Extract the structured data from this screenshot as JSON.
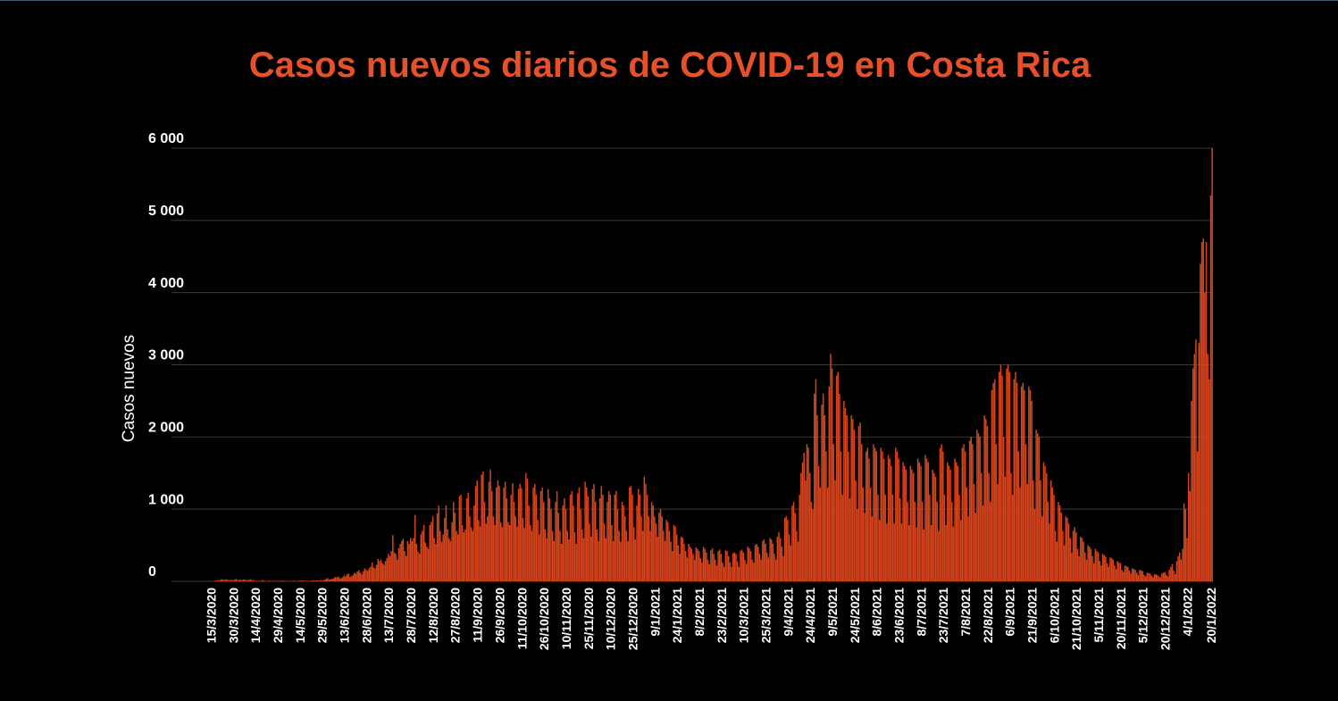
{
  "chart_data": {
    "type": "bar",
    "title": "Casos nuevos diarios de COVID-19 en Costa Rica",
    "y_label": "Casos nuevos",
    "color": "#d9441c",
    "grid": true,
    "ylim": [
      0,
      6000
    ],
    "yticks": [
      0,
      {
        "value": 1000,
        "label": "1 000"
      },
      {
        "value": 2000,
        "label": "2 000"
      },
      {
        "value": 3000,
        "label": "3 000"
      },
      {
        "value": 4000,
        "label": "4 000"
      },
      {
        "value": 5000,
        "label": "5 000"
      },
      {
        "value": 6000,
        "label": "6 000"
      }
    ],
    "categories": [
      "15/3/2020",
      null,
      null,
      null,
      null,
      null,
      null,
      null,
      null,
      null,
      null,
      null,
      null,
      null,
      null,
      "30/3/2020",
      null,
      null,
      null,
      null,
      null,
      null,
      null,
      null,
      null,
      null,
      null,
      null,
      null,
      null,
      "14/4/2020",
      null,
      null,
      null,
      null,
      null,
      null,
      null,
      null,
      null,
      null,
      null,
      null,
      null,
      null,
      "29/4/2020",
      null,
      null,
      null,
      null,
      null,
      null,
      null,
      null,
      null,
      null,
      null,
      null,
      null,
      null,
      "14/5/2020",
      null,
      null,
      null,
      null,
      null,
      null,
      null,
      null,
      null,
      null,
      null,
      null,
      null,
      null,
      "29/5/2020",
      null,
      null,
      null,
      null,
      null,
      null,
      null,
      null,
      null,
      null,
      null,
      null,
      null,
      null,
      "13/6/2020",
      null,
      null,
      null,
      null,
      null,
      null,
      null,
      null,
      null,
      null,
      null,
      null,
      null,
      null,
      "28/6/2020",
      null,
      null,
      null,
      null,
      null,
      null,
      null,
      null,
      null,
      null,
      null,
      null,
      null,
      null,
      "13/7/2020",
      null,
      null,
      null,
      null,
      null,
      null,
      null,
      null,
      null,
      null,
      null,
      null,
      null,
      null,
      "28/7/2020",
      null,
      null,
      null,
      null,
      null,
      null,
      null,
      null,
      null,
      null,
      null,
      null,
      null,
      null,
      "12/8/2020",
      null,
      null,
      null,
      null,
      null,
      null,
      null,
      null,
      null,
      null,
      null,
      null,
      null,
      null,
      "27/8/2020",
      null,
      null,
      null,
      null,
      null,
      null,
      null,
      null,
      null,
      null,
      null,
      null,
      null,
      null,
      "11/9/2020",
      null,
      null,
      null,
      null,
      null,
      null,
      null,
      null,
      null,
      null,
      null,
      null,
      null,
      null,
      "26/9/2020",
      null,
      null,
      null,
      null,
      null,
      null,
      null,
      null,
      null,
      null,
      null,
      null,
      null,
      null,
      "11/10/2020",
      null,
      null,
      null,
      null,
      null,
      null,
      null,
      null,
      null,
      null,
      null,
      null,
      null,
      null,
      "26/10/2020",
      null,
      null,
      null,
      null,
      null,
      null,
      null,
      null,
      null,
      null,
      null,
      null,
      null,
      null,
      "10/11/2020",
      null,
      null,
      null,
      null,
      null,
      null,
      null,
      null,
      null,
      null,
      null,
      null,
      null,
      null,
      "25/11/2020",
      null,
      null,
      null,
      null,
      null,
      null,
      null,
      null,
      null,
      null,
      null,
      null,
      null,
      null,
      "10/12/2020",
      null,
      null,
      null,
      null,
      null,
      null,
      null,
      null,
      null,
      null,
      null,
      null,
      null,
      null,
      "25/12/2020",
      null,
      null,
      null,
      null,
      null,
      null,
      null,
      null,
      null,
      null,
      null,
      null,
      null,
      null,
      "9/1/2021",
      null,
      null,
      null,
      null,
      null,
      null,
      null,
      null,
      null,
      null,
      null,
      null,
      null,
      null,
      "24/1/2021",
      null,
      null,
      null,
      null,
      null,
      null,
      null,
      null,
      null,
      null,
      null,
      null,
      null,
      null,
      "8/2/2021",
      null,
      null,
      null,
      null,
      null,
      null,
      null,
      null,
      null,
      null,
      null,
      null,
      null,
      null,
      "23/2/2021",
      null,
      null,
      null,
      null,
      null,
      null,
      null,
      null,
      null,
      null,
      null,
      null,
      null,
      null,
      "10/3/2021",
      null,
      null,
      null,
      null,
      null,
      null,
      null,
      null,
      null,
      null,
      null,
      null,
      null,
      null,
      "25/3/2021",
      null,
      null,
      null,
      null,
      null,
      null,
      null,
      null,
      null,
      null,
      null,
      null,
      null,
      null,
      "9/4/2021",
      null,
      null,
      null,
      null,
      null,
      null,
      null,
      null,
      null,
      null,
      null,
      null,
      null,
      null,
      "24/4/2021",
      null,
      null,
      null,
      null,
      null,
      null,
      null,
      null,
      null,
      null,
      null,
      null,
      null,
      null,
      "9/5/2021",
      null,
      null,
      null,
      null,
      null,
      null,
      null,
      null,
      null,
      null,
      null,
      null,
      null,
      null,
      "24/5/2021",
      null,
      null,
      null,
      null,
      null,
      null,
      null,
      null,
      null,
      null,
      null,
      null,
      null,
      null,
      "8/6/2021",
      null,
      null,
      null,
      null,
      null,
      null,
      null,
      null,
      null,
      null,
      null,
      null,
      null,
      null,
      "23/6/2021",
      null,
      null,
      null,
      null,
      null,
      null,
      null,
      null,
      null,
      null,
      null,
      null,
      null,
      null,
      "8/7/2021",
      null,
      null,
      null,
      null,
      null,
      null,
      null,
      null,
      null,
      null,
      null,
      null,
      null,
      null,
      "23/7/2021",
      null,
      null,
      null,
      null,
      null,
      null,
      null,
      null,
      null,
      null,
      null,
      null,
      null,
      null,
      "7/8/2021",
      null,
      null,
      null,
      null,
      null,
      null,
      null,
      null,
      null,
      null,
      null,
      null,
      null,
      null,
      "22/8/2021",
      null,
      null,
      null,
      null,
      null,
      null,
      null,
      null,
      null,
      null,
      null,
      null,
      null,
      null,
      "6/9/2021",
      null,
      null,
      null,
      null,
      null,
      null,
      null,
      null,
      null,
      null,
      null,
      null,
      null,
      null,
      "21/9/2021",
      null,
      null,
      null,
      null,
      null,
      null,
      null,
      null,
      null,
      null,
      null,
      null,
      null,
      null,
      "6/10/2021",
      null,
      null,
      null,
      null,
      null,
      null,
      null,
      null,
      null,
      null,
      null,
      null,
      null,
      null,
      "21/10/2021",
      null,
      null,
      null,
      null,
      null,
      null,
      null,
      null,
      null,
      null,
      null,
      null,
      null,
      null,
      "5/11/2021",
      null,
      null,
      null,
      null,
      null,
      null,
      null,
      null,
      null,
      null,
      null,
      null,
      null,
      null,
      "20/11/2021",
      null,
      null,
      null,
      null,
      null,
      null,
      null,
      null,
      null,
      null,
      null,
      null,
      null,
      null,
      "5/12/2021",
      null,
      null,
      null,
      null,
      null,
      null,
      null,
      null,
      null,
      null,
      null,
      null,
      null,
      null,
      "20/12/2021",
      null,
      null,
      null,
      null,
      null,
      null,
      null,
      null,
      null,
      null,
      null,
      null,
      null,
      null,
      "4/1/2022",
      null,
      null,
      null,
      null,
      null,
      null,
      null,
      null,
      null,
      null,
      null,
      null,
      null,
      null,
      null,
      "20/1/2022"
    ],
    "values": [
      1,
      5,
      9,
      9,
      18,
      14,
      26,
      27,
      17,
      26,
      23,
      13,
      19,
      20,
      15,
      23,
      33,
      17,
      20,
      21,
      17,
      25,
      20,
      15,
      19,
      18,
      28,
      13,
      18,
      3,
      9,
      4,
      8,
      8,
      18,
      7,
      5,
      3,
      11,
      3,
      4,
      7,
      3,
      8,
      4,
      4,
      8,
      10,
      4,
      5,
      5,
      4,
      2,
      4,
      4,
      9,
      2,
      6,
      4,
      9,
      10,
      12,
      7,
      7,
      8,
      5,
      5,
      9,
      15,
      10,
      11,
      13,
      7,
      18,
      9,
      18,
      20,
      35,
      44,
      25,
      30,
      35,
      42,
      60,
      55,
      70,
      48,
      41,
      57,
      82,
      67,
      96,
      110,
      60,
      71,
      90,
      119,
      105,
      134,
      153,
      120,
      99,
      140,
      180,
      160,
      147,
      181,
      204,
      260,
      190,
      180,
      230,
      310,
      280,
      300,
      250,
      230,
      280,
      320,
      380,
      350,
      420,
      640,
      400,
      380,
      300,
      460,
      520,
      560,
      590,
      420,
      350,
      560,
      520,
      600,
      560,
      600,
      920,
      520,
      410,
      380,
      650,
      700,
      780,
      540,
      480,
      450,
      780,
      820,
      900,
      600,
      520,
      940,
      1050,
      700,
      550,
      650,
      880,
      1050,
      720,
      600,
      560,
      820,
      1100,
      950,
      700,
      650,
      1180,
      1200,
      780,
      680,
      720,
      1150,
      1230,
      900,
      750,
      700,
      1050,
      1320,
      1400,
      850,
      760,
      1480,
      1520,
      1100,
      800,
      900,
      1380,
      1550,
      1250,
      900,
      780,
      1300,
      1400,
      1320,
      820,
      750,
      1300,
      1380,
      1150,
      820,
      780,
      1200,
      1360,
      1100,
      900,
      760,
      1280,
      1350,
      1290,
      880,
      740,
      1500,
      1420,
      1050,
      780,
      700,
      1300,
      1350,
      1200,
      850,
      650,
      1250,
      1300,
      1100,
      720,
      600,
      1280,
      1150,
      1000,
      700,
      560,
      1100,
      1250,
      950,
      700,
      520,
      1050,
      1150,
      1000,
      700,
      580,
      1200,
      1250,
      1050,
      680,
      520,
      1220,
      1300,
      1000,
      720,
      600,
      1380,
      1300,
      1180,
      800,
      620,
      1280,
      1350,
      1100,
      720,
      560,
      1150,
      1320,
      1200,
      800,
      600,
      1100,
      1250,
      1200,
      780,
      560,
      1200,
      1250,
      1000,
      700,
      550,
      1100,
      1050,
      900,
      700,
      560,
      1300,
      1320,
      1200,
      750,
      580,
      1050,
      1280,
      1200,
      900,
      700,
      1450,
      1350,
      1200,
      900,
      700,
      1100,
      1050,
      900,
      800,
      620,
      950,
      1000,
      900,
      700,
      560,
      850,
      820,
      700,
      550,
      420,
      780,
      760,
      650,
      500,
      380,
      620,
      600,
      520,
      420,
      330,
      520,
      480,
      450,
      380,
      300,
      470,
      450,
      420,
      320,
      260,
      480,
      450,
      400,
      300,
      240,
      430,
      460,
      380,
      300,
      220,
      420,
      440,
      380,
      260,
      200,
      430,
      420,
      350,
      260,
      200,
      390,
      400,
      380,
      280,
      200,
      420,
      440,
      400,
      300,
      240,
      480,
      460,
      420,
      300,
      260,
      500,
      520,
      480,
      380,
      300,
      560,
      580,
      520,
      400,
      330,
      600,
      580,
      520,
      380,
      300,
      620,
      680,
      600,
      480,
      350,
      880,
      900,
      850,
      650,
      500,
      1050,
      1100,
      950,
      700,
      550,
      1200,
      1500,
      1650,
      1780,
      1400,
      1900,
      1850,
      1500,
      1100,
      1000,
      2600,
      2800,
      2300,
      1600,
      1300,
      2450,
      2600,
      2300,
      1800,
      1300,
      2700,
      3150,
      2950,
      1900,
      1400,
      2850,
      2900,
      2600,
      1800,
      1200,
      2500,
      2400,
      2300,
      1800,
      1150,
      2300,
      2250,
      2100,
      1400,
      1000,
      2150,
      2200,
      1900,
      1300,
      950,
      1800,
      1850,
      1700,
      1300,
      900,
      1900,
      1850,
      1800,
      1200,
      850,
      1850,
      1800,
      1700,
      1200,
      800,
      1750,
      1700,
      1600,
      1200,
      800,
      1850,
      1800,
      1700,
      1150,
      800,
      1650,
      1600,
      1550,
      1100,
      780,
      1600,
      1550,
      1500,
      1100,
      750,
      1700,
      1650,
      1600,
      1100,
      720,
      1750,
      1700,
      1650,
      1200,
      780,
      1550,
      1500,
      1450,
      1100,
      700,
      1850,
      1900,
      1800,
      1200,
      780,
      1650,
      1600,
      1550,
      1100,
      760,
      1700,
      1650,
      1600,
      1200,
      850,
      1850,
      1900,
      1800,
      1300,
      900,
      1950,
      2000,
      1900,
      1350,
      950,
      2100,
      2050,
      2000,
      1500,
      1050,
      2300,
      2250,
      2150,
      1500,
      1100,
      2650,
      2750,
      2800,
      1900,
      1350,
      2900,
      3000,
      2850,
      2000,
      1450,
      2950,
      3000,
      2900,
      1500,
      1200,
      2800,
      2900,
      2750,
      1800,
      1300,
      2700,
      2750,
      2650,
      1900,
      1350,
      2700,
      2650,
      2500,
      1400,
      1000,
      2100,
      2050,
      2000,
      1400,
      900,
      1650,
      1600,
      1500,
      1100,
      800,
      1400,
      1300,
      1200,
      700,
      550,
      1100,
      1050,
      950,
      700,
      500,
      900,
      880,
      800,
      600,
      400,
      700,
      750,
      680,
      450,
      350,
      620,
      600,
      550,
      400,
      300,
      500,
      480,
      450,
      350,
      250,
      450,
      420,
      400,
      280,
      220,
      380,
      360,
      340,
      250,
      200,
      330,
      320,
      300,
      220,
      170,
      280,
      260,
      250,
      160,
      130,
      220,
      210,
      200,
      150,
      110,
      180,
      170,
      160,
      120,
      90,
      160,
      150,
      140,
      90,
      70,
      120,
      115,
      110,
      80,
      60,
      100,
      95,
      90,
      70,
      55,
      110,
      120,
      130,
      90,
      70,
      160,
      200,
      240,
      150,
      100,
      280,
      350,
      400,
      300,
      450,
      1080,
      1000,
      600,
      1500,
      1250,
      2500,
      2950,
      3150,
      3350,
      1800,
      3300,
      4400,
      4700,
      4750,
      4000,
      4700,
      3150,
      2800,
      5350,
      6000
    ]
  }
}
